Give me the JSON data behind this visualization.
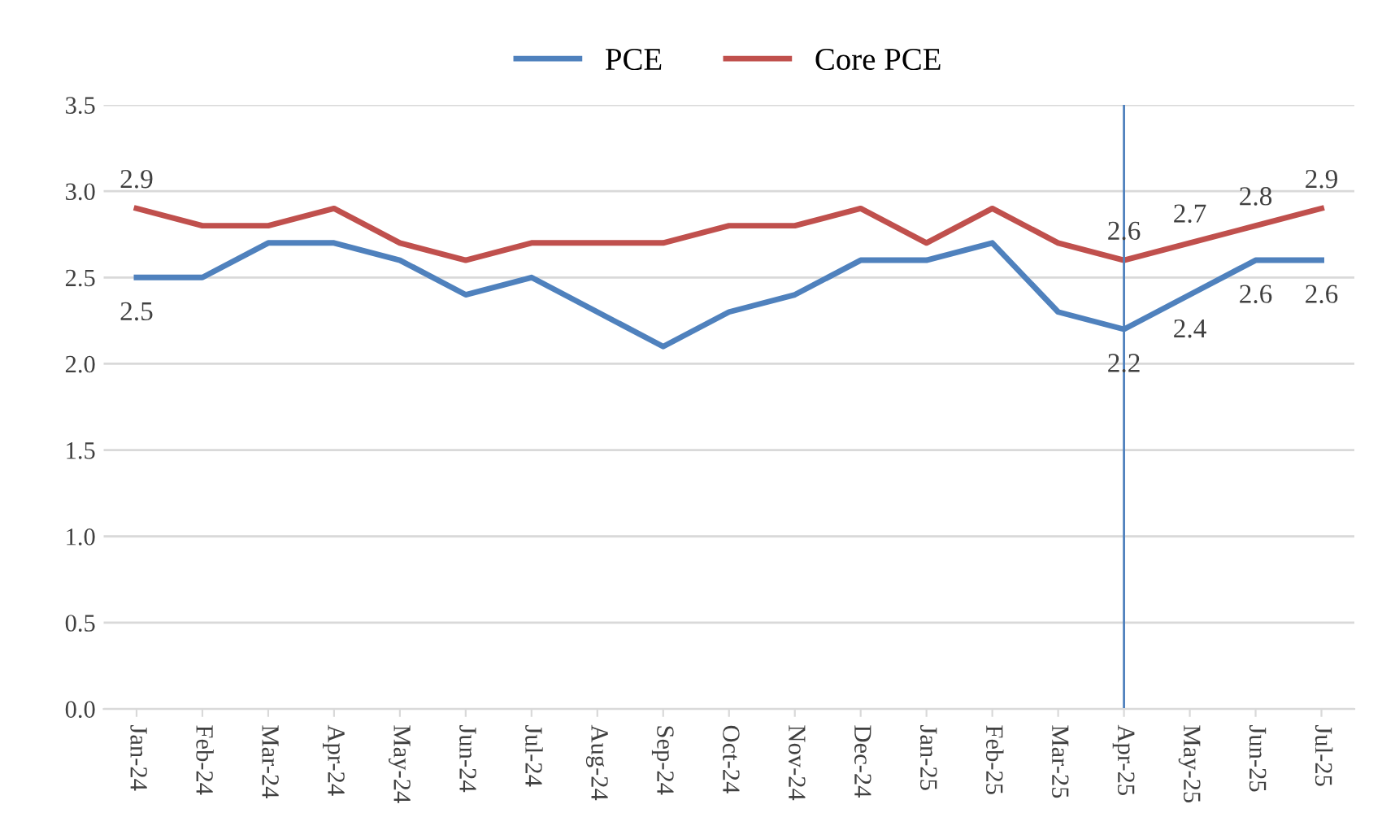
{
  "chart_data": {
    "type": "line",
    "categories": [
      "Jan-24",
      "Feb-24",
      "Mar-24",
      "Apr-24",
      "May-24",
      "Jun-24",
      "Jul-24",
      "Aug-24",
      "Sep-24",
      "Oct-24",
      "Nov-24",
      "Dec-24",
      "Jan-25",
      "Feb-25",
      "Mar-25",
      "Apr-25",
      "May-25",
      "Jun-25",
      "Jul-25"
    ],
    "series": [
      {
        "name": "PCE",
        "color": "#4f81bd",
        "values": [
          2.5,
          2.5,
          2.7,
          2.7,
          2.6,
          2.4,
          2.5,
          2.3,
          2.1,
          2.3,
          2.4,
          2.6,
          2.6,
          2.7,
          2.3,
          2.2,
          2.4,
          2.6,
          2.6
        ],
        "value_labels": [
          "2.5",
          null,
          null,
          null,
          null,
          null,
          null,
          null,
          null,
          null,
          null,
          null,
          null,
          null,
          null,
          "2.2",
          "2.4",
          "2.6",
          "2.6"
        ]
      },
      {
        "name": "Core PCE",
        "color": "#c0504d",
        "values": [
          2.9,
          2.8,
          2.8,
          2.9,
          2.7,
          2.6,
          2.7,
          2.7,
          2.7,
          2.8,
          2.8,
          2.9,
          2.7,
          2.9,
          2.7,
          2.6,
          2.7,
          2.8,
          2.9
        ],
        "value_labels": [
          "2.9",
          null,
          null,
          null,
          null,
          null,
          null,
          null,
          null,
          null,
          null,
          null,
          null,
          null,
          null,
          "2.6",
          "2.7",
          "2.8",
          "2.9"
        ]
      }
    ],
    "ylim": [
      0,
      3.5
    ],
    "yticks": [
      {
        "value": 0,
        "label": "0.0"
      },
      {
        "value": 0.5,
        "label": "0.5"
      },
      {
        "value": 1,
        "label": "1.0"
      },
      {
        "value": 1.5,
        "label": "1.5"
      },
      {
        "value": 2,
        "label": "2.0"
      },
      {
        "value": 2.5,
        "label": "2.5"
      },
      {
        "value": 3,
        "label": "3.0"
      },
      {
        "value": 3.5,
        "label": "3.5"
      }
    ],
    "grid": "y",
    "legend": "top",
    "marker": "none",
    "line_style": "solid",
    "ref_lines": [
      {
        "axis": "x",
        "value": "Apr-25",
        "color": "#4f81bd"
      }
    ]
  }
}
